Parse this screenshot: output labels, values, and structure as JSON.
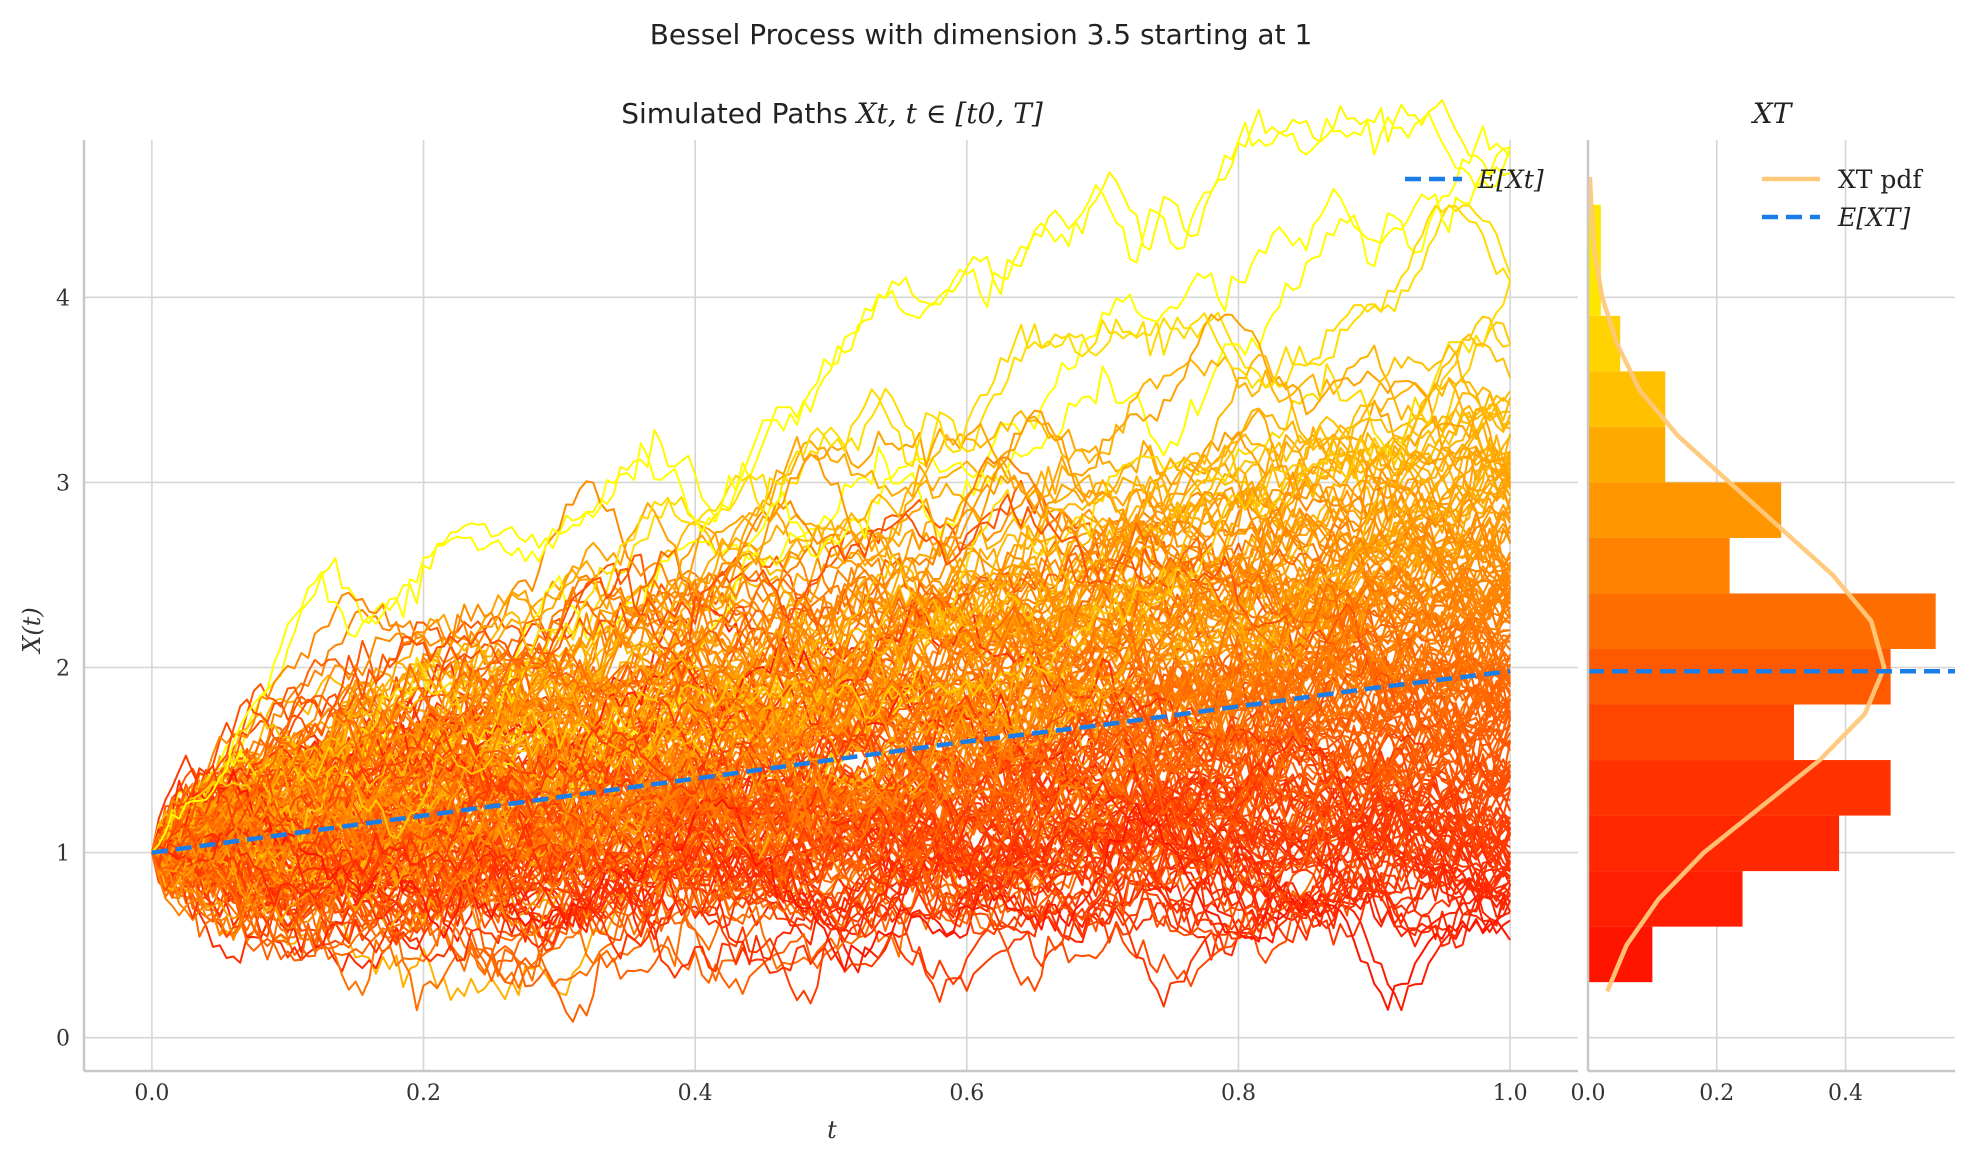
{
  "figure": {
    "suptitle": "Bessel Process with dimension 3.5 starting at 1"
  },
  "chart_data": [
    {
      "type": "line",
      "title_text": "Simulated Paths ",
      "title_math": "Xt, t ∈ [t0, T]",
      "xlabel": "t",
      "ylabel": "X(t)",
      "xlim": [
        -0.05,
        1.05
      ],
      "ylim": [
        -0.18,
        4.85
      ],
      "xticks": [
        "0.0",
        "0.2",
        "0.4",
        "0.6",
        "0.8",
        "1.0"
      ],
      "xtick_values": [
        0,
        0.2,
        0.4,
        0.6,
        0.8,
        1.0
      ],
      "yticks": [
        "0",
        "1",
        "2",
        "3",
        "4"
      ],
      "ytick_values": [
        0,
        1,
        2,
        3,
        4
      ],
      "grid": true,
      "n_paths": 200,
      "n_steps": 200,
      "x0": 1,
      "dimension": 3.5,
      "colormap": "autumn (red → yellow by final value)",
      "expectation": {
        "name": "E[Xt]",
        "x": [
          0,
          0.1,
          0.2,
          0.3,
          0.4,
          0.5,
          0.6,
          0.7,
          0.8,
          0.9,
          1.0
        ],
        "y": [
          1.0,
          1.1,
          1.2,
          1.3,
          1.4,
          1.5,
          1.6,
          1.69,
          1.79,
          1.89,
          1.98
        ],
        "color": "#1a7de8",
        "style": "dashed"
      },
      "legend": {
        "label": "E[Xt]",
        "position": "top-right"
      }
    },
    {
      "type": "bar",
      "orientation": "horizontal",
      "title": "XT",
      "xticks": [
        "0.0",
        "0.2",
        "0.4"
      ],
      "xtick_values": [
        0,
        0.2,
        0.4
      ],
      "xlim": [
        0,
        0.57
      ],
      "ylim": [
        -0.18,
        4.85
      ],
      "bins": [
        {
          "y0": 0.3,
          "y1": 0.6,
          "density": 0.1,
          "color": "#ff1400"
        },
        {
          "y0": 0.6,
          "y1": 0.9,
          "density": 0.24,
          "color": "#ff1e00"
        },
        {
          "y0": 0.9,
          "y1": 1.2,
          "density": 0.39,
          "color": "#ff2800"
        },
        {
          "y0": 1.2,
          "y1": 1.5,
          "density": 0.47,
          "color": "#ff3200"
        },
        {
          "y0": 1.5,
          "y1": 1.8,
          "density": 0.32,
          "color": "#ff4600"
        },
        {
          "y0": 1.8,
          "y1": 2.1,
          "density": 0.47,
          "color": "#ff5a00"
        },
        {
          "y0": 2.1,
          "y1": 2.4,
          "density": 0.54,
          "color": "#ff6e00"
        },
        {
          "y0": 2.4,
          "y1": 2.7,
          "density": 0.22,
          "color": "#ff8200"
        },
        {
          "y0": 2.7,
          "y1": 3.0,
          "density": 0.3,
          "color": "#ff9600"
        },
        {
          "y0": 3.0,
          "y1": 3.3,
          "density": 0.12,
          "color": "#ffaa00"
        },
        {
          "y0": 3.3,
          "y1": 3.6,
          "density": 0.12,
          "color": "#ffc000"
        },
        {
          "y0": 3.6,
          "y1": 3.9,
          "density": 0.05,
          "color": "#ffd200"
        },
        {
          "y0": 3.9,
          "y1": 4.5,
          "density": 0.02,
          "color": "#ffe600"
        }
      ],
      "pdf": {
        "name": "XT pdf",
        "color": "#ffc87a",
        "y": [
          0.25,
          0.5,
          0.75,
          1.0,
          1.25,
          1.5,
          1.75,
          2.0,
          2.25,
          2.5,
          2.75,
          3.0,
          3.25,
          3.5,
          3.75,
          4.0,
          4.25,
          4.5,
          4.65
        ],
        "x": [
          0.03,
          0.06,
          0.11,
          0.18,
          0.27,
          0.36,
          0.43,
          0.46,
          0.44,
          0.38,
          0.3,
          0.22,
          0.14,
          0.08,
          0.045,
          0.022,
          0.01,
          0.005,
          0.003
        ]
      },
      "expectation": {
        "name": "E[XT]",
        "value": 1.98,
        "color": "#1a7de8",
        "style": "dashed"
      },
      "legend": {
        "labels": [
          "XT pdf",
          "E[XT]"
        ],
        "position": "top-right"
      }
    }
  ]
}
